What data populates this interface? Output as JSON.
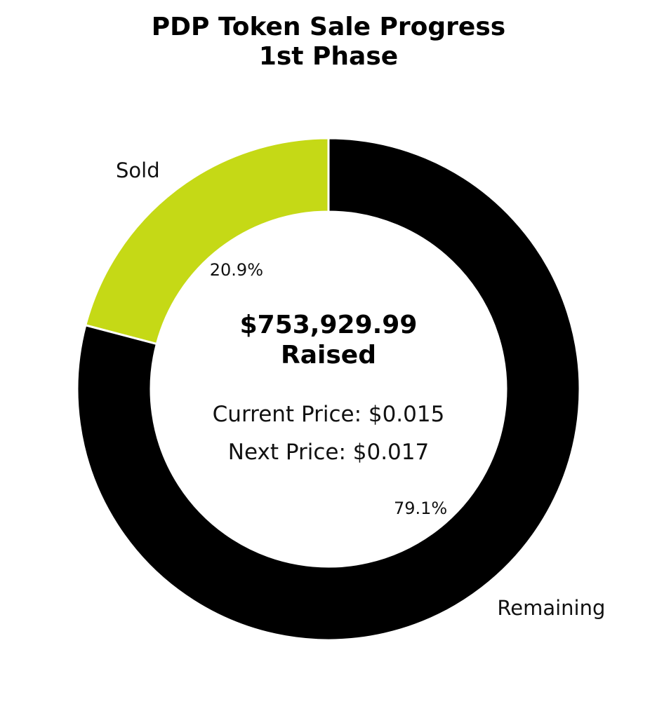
{
  "chart_data": {
    "type": "pie",
    "donut": true,
    "title_lines": [
      "PDP Token Sale Progress",
      "1st Phase"
    ],
    "slices": [
      {
        "label": "Sold",
        "value": 20.9,
        "pct_label": "20.9%",
        "color": "#c5d916"
      },
      {
        "label": "Remaining",
        "value": 79.1,
        "pct_label": "79.1%",
        "color": "#000000"
      }
    ],
    "center_text": {
      "amount": "$753,929.99",
      "raised_label": "Raised",
      "current_price": "Current Price: $0.015",
      "next_price": "Next Price: $0.017"
    },
    "start_angle": "12 o'clock",
    "direction": "counterclockwise",
    "slice_edge_color": "#ffffff"
  }
}
